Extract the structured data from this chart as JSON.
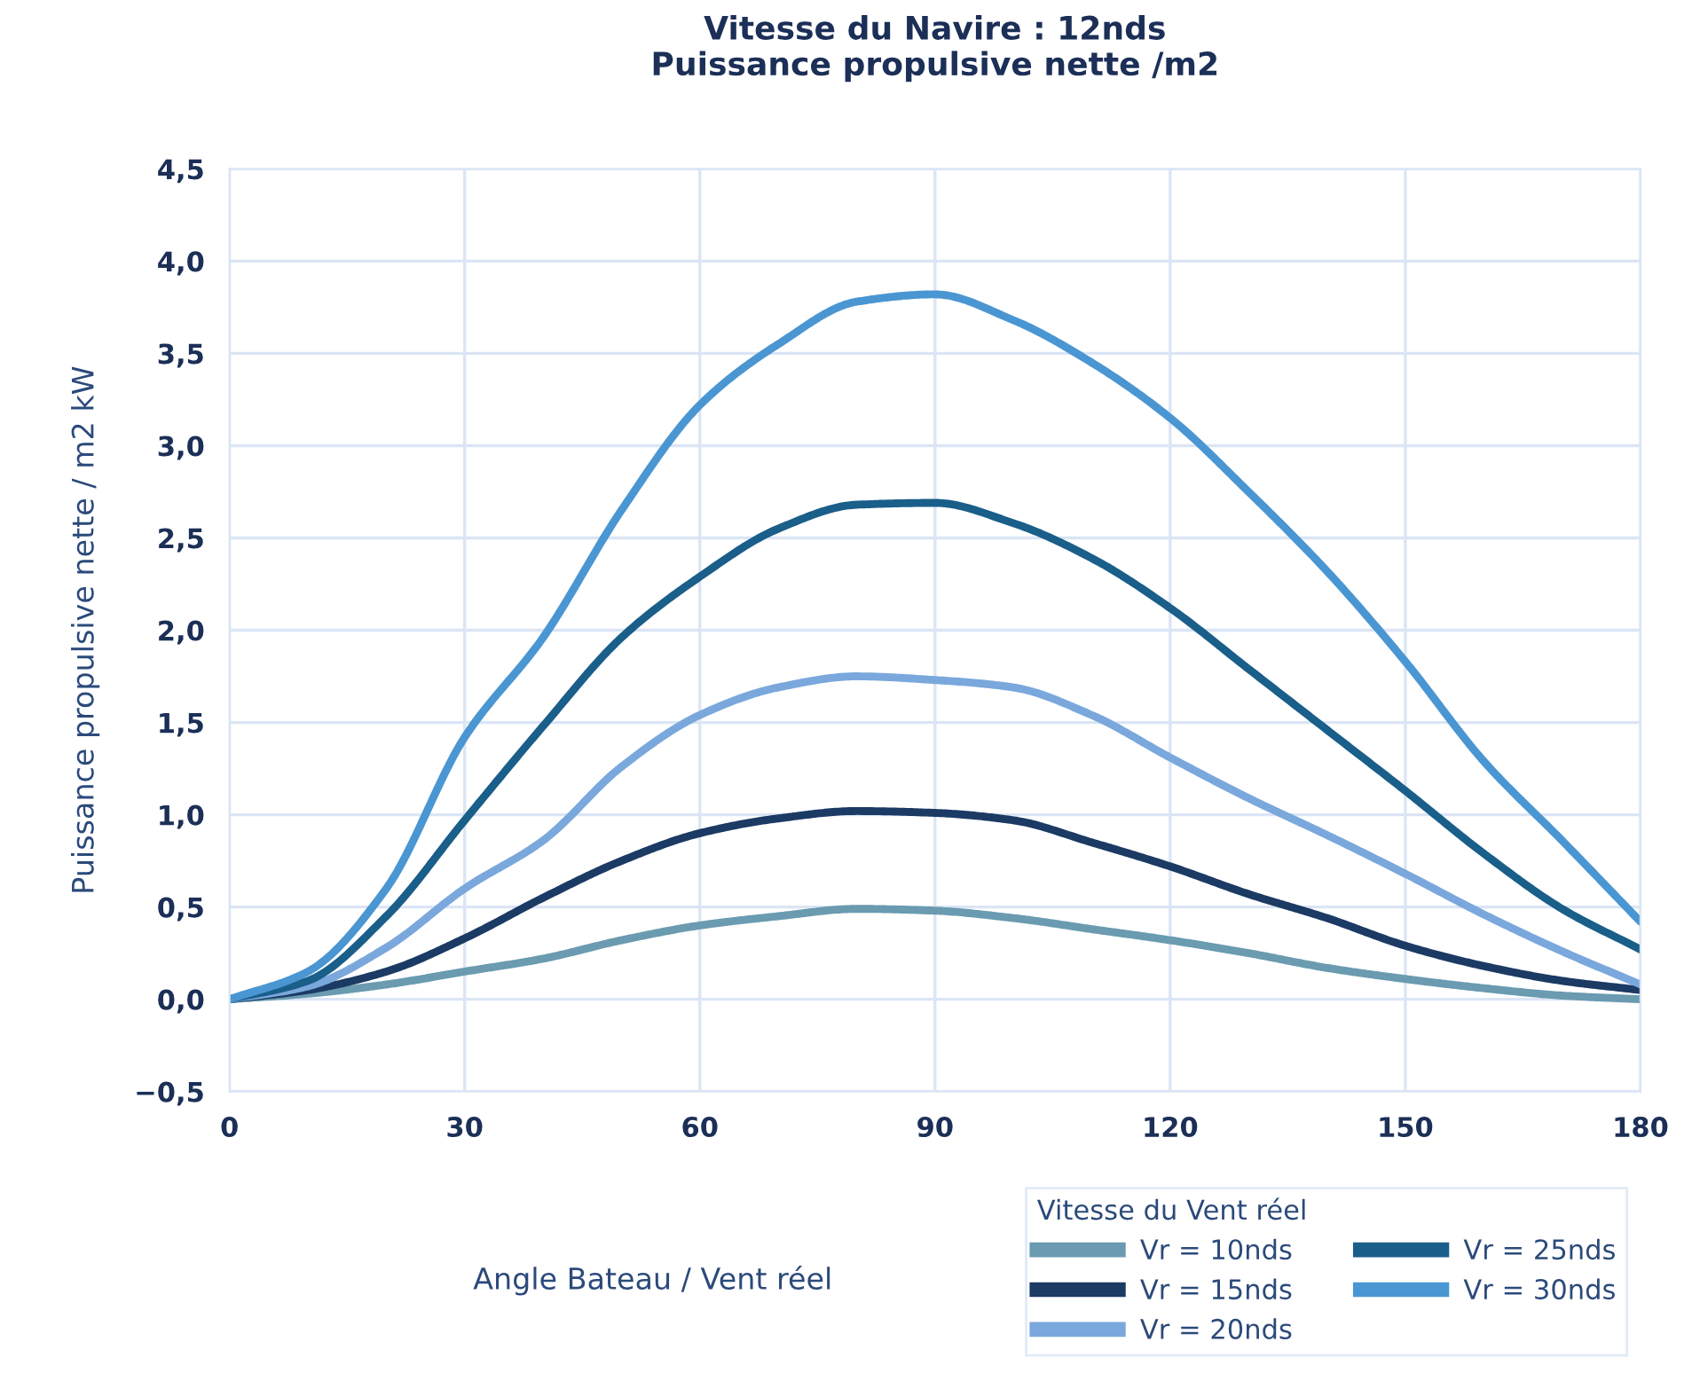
{
  "chart_data": {
    "type": "line",
    "title": "Vitesse du Navire : 12nds\nPuissance propulsive nette /m2",
    "xlabel": "Angle Bateau / Vent réel",
    "ylabel": "Puissance propulsive nette / m2 kW",
    "legend_title": "Vitesse du Vent réel",
    "legend": "bottom right",
    "grid": true,
    "marker": "none",
    "line_style": "solid",
    "x": [
      0,
      10,
      20,
      30,
      40,
      50,
      60,
      70,
      80,
      90,
      100,
      110,
      120,
      130,
      140,
      150,
      160,
      170,
      180
    ],
    "xlim": [
      0,
      180
    ],
    "xticks": [
      0,
      30,
      60,
      90,
      120,
      150,
      180
    ],
    "ylim": [
      -0.5,
      4.5
    ],
    "yticks": [
      {
        "value": -0.5,
        "label": "−0,5"
      },
      {
        "value": 0,
        "label": "0,0"
      },
      {
        "value": 0.5,
        "label": "0,5"
      },
      {
        "value": 1,
        "label": "1,0"
      },
      {
        "value": 1.5,
        "label": "1,5"
      },
      {
        "value": 2,
        "label": "2,0"
      },
      {
        "value": 2.5,
        "label": "2,5"
      },
      {
        "value": 3,
        "label": "3,0"
      },
      {
        "value": 3.5,
        "label": "3,5"
      },
      {
        "value": 4,
        "label": "4,0"
      },
      {
        "value": 4.5,
        "label": "4,5"
      }
    ],
    "series": [
      {
        "name": "Vr = 10nds",
        "color": "#6a9bb0",
        "values": [
          0,
          0.03,
          0.08,
          0.15,
          0.22,
          0.32,
          0.4,
          0.45,
          0.49,
          0.48,
          0.44,
          0.38,
          0.32,
          0.25,
          0.17,
          0.11,
          0.06,
          0.02,
          0.0
        ]
      },
      {
        "name": "Vr = 15nds",
        "color": "#1b3a64",
        "values": [
          0,
          0.05,
          0.15,
          0.33,
          0.55,
          0.75,
          0.9,
          0.98,
          1.02,
          1.01,
          0.97,
          0.85,
          0.72,
          0.57,
          0.44,
          0.29,
          0.18,
          0.1,
          0.05
        ]
      },
      {
        "name": "Vr = 20nds",
        "color": "#7aa8dc",
        "values": [
          0,
          0.07,
          0.28,
          0.6,
          0.86,
          1.26,
          1.54,
          1.69,
          1.75,
          1.73,
          1.69,
          1.54,
          1.31,
          1.09,
          0.89,
          0.68,
          0.46,
          0.26,
          0.08
        ]
      },
      {
        "name": "Vr = 25nds",
        "color": "#1a5e8a",
        "values": [
          0,
          0.1,
          0.45,
          0.97,
          1.48,
          1.96,
          2.29,
          2.55,
          2.68,
          2.69,
          2.58,
          2.39,
          2.12,
          1.79,
          1.46,
          1.13,
          0.79,
          0.49,
          0.27
        ]
      },
      {
        "name": "Vr = 30nds",
        "color": "#4a96d2",
        "values": [
          0,
          0.15,
          0.6,
          1.42,
          1.96,
          2.65,
          3.22,
          3.55,
          3.78,
          3.82,
          3.68,
          3.45,
          3.15,
          2.75,
          2.32,
          1.83,
          1.29,
          0.86,
          0.42
        ]
      }
    ]
  }
}
